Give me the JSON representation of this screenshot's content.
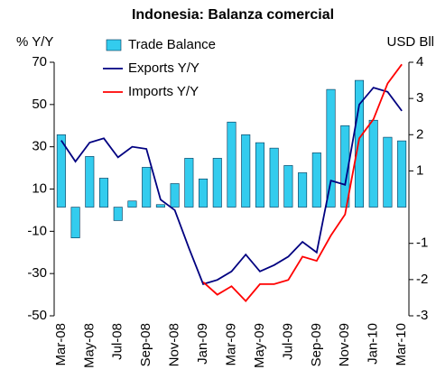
{
  "chart_data": {
    "type": "bar-line",
    "title": "Indonesia: Balanza comercial",
    "y_label": "% Y/Y",
    "y2_label": "USD Bll",
    "categories": [
      "Mar-08",
      null,
      "May-08",
      null,
      "Jul-08",
      null,
      "Sep-08",
      null,
      "Nov-08",
      null,
      "Jan-09",
      null,
      "Mar-09",
      null,
      "May-09",
      null,
      "Jul-09",
      null,
      "Sep-09",
      null,
      "Nov-09",
      null,
      "Jan-10",
      null,
      "Mar-10"
    ],
    "series": [
      {
        "name": "Trade Balance",
        "type": "bar",
        "axis": "y2",
        "color": "#33ccee",
        "values": [
          2.0,
          -0.85,
          1.4,
          0.8,
          -0.37,
          0.17,
          1.1,
          0.07,
          0.65,
          1.35,
          0.78,
          1.35,
          2.35,
          2.0,
          1.78,
          1.63,
          1.15,
          0.95,
          1.5,
          3.25,
          2.25,
          3.5,
          2.4,
          1.93,
          1.83
        ]
      },
      {
        "name": "Exports Y/Y",
        "type": "line",
        "color": "#000080",
        "values": [
          33,
          23,
          32,
          34,
          25,
          30,
          29,
          5,
          0,
          -18,
          -35,
          -33,
          -29,
          -21,
          -29,
          -26,
          -22,
          -15,
          -20,
          14,
          12,
          50,
          58,
          56,
          47
        ]
      },
      {
        "name": "Imports Y/Y",
        "type": "line",
        "color": "#ff0000",
        "values": [
          null,
          null,
          null,
          null,
          null,
          null,
          null,
          null,
          null,
          null,
          -34,
          -40,
          -36,
          -43,
          -35,
          -35,
          -33,
          -22,
          -24,
          -12,
          -2,
          34,
          43,
          60,
          69
        ]
      }
    ],
    "ylim": [
      -50,
      70
    ],
    "yticks": [
      70,
      50,
      30,
      10,
      -10,
      -30,
      -50
    ],
    "y2lim": [
      -3,
      4
    ],
    "y2ticks": [
      4,
      3,
      2,
      1,
      -1,
      -2,
      -3
    ],
    "legend": "top-left"
  }
}
